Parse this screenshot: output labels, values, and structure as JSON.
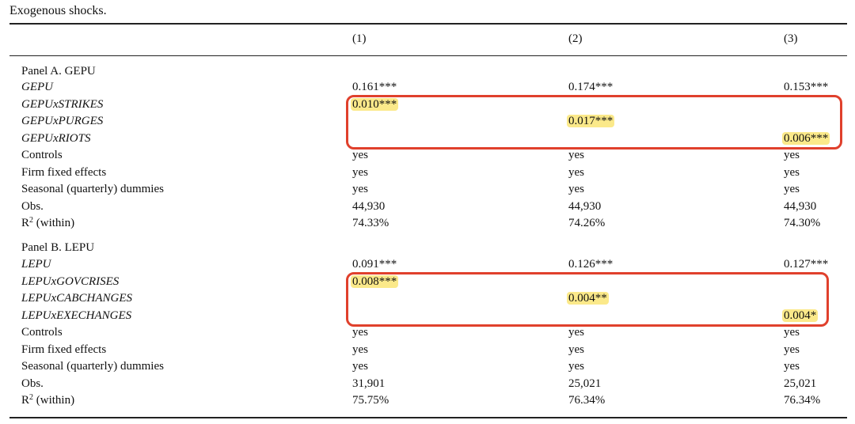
{
  "title": "Exogenous shocks.",
  "columns": [
    "(1)",
    "(2)",
    "(3)"
  ],
  "panel_a": {
    "title": "Panel A. GEPU",
    "rows": [
      {
        "label": "GEPU",
        "italic": true,
        "values": [
          "0.161***",
          "0.174***",
          "0.153***"
        ],
        "highlight": [
          false,
          false,
          false
        ]
      },
      {
        "label": "GEPUxSTRIKES",
        "italic": true,
        "values": [
          "0.010***",
          "",
          ""
        ],
        "highlight": [
          true,
          false,
          false
        ]
      },
      {
        "label": "GEPUxPURGES",
        "italic": true,
        "values": [
          "",
          "0.017***",
          ""
        ],
        "highlight": [
          false,
          true,
          false
        ]
      },
      {
        "label": "GEPUxRIOTS",
        "italic": true,
        "values": [
          "",
          "",
          "0.006***"
        ],
        "highlight": [
          false,
          false,
          true
        ]
      },
      {
        "label": "Controls",
        "italic": false,
        "values": [
          "yes",
          "yes",
          "yes"
        ],
        "highlight": [
          false,
          false,
          false
        ]
      },
      {
        "label": "Firm fixed effects",
        "italic": false,
        "values": [
          "yes",
          "yes",
          "yes"
        ],
        "highlight": [
          false,
          false,
          false
        ]
      },
      {
        "label": "Seasonal (quarterly) dummies",
        "italic": false,
        "values": [
          "yes",
          "yes",
          "yes"
        ],
        "highlight": [
          false,
          false,
          false
        ]
      },
      {
        "label": "Obs.",
        "italic": false,
        "values": [
          "44,930",
          "44,930",
          "44,930"
        ],
        "highlight": [
          false,
          false,
          false
        ]
      },
      {
        "label": "R",
        "sup": "2",
        "suffix": " (within)",
        "italic": false,
        "values": [
          "74.33%",
          "74.26%",
          "74.30%"
        ],
        "highlight": [
          false,
          false,
          false
        ]
      }
    ]
  },
  "panel_b": {
    "title": "Panel B. LEPU",
    "rows": [
      {
        "label": "LEPU",
        "italic": true,
        "values": [
          "0.091***",
          "0.126***",
          "0.127***"
        ],
        "highlight": [
          false,
          false,
          false
        ]
      },
      {
        "label": "LEPUxGOVCRISES",
        "italic": true,
        "values": [
          "0.008***",
          "",
          ""
        ],
        "highlight": [
          true,
          false,
          false
        ]
      },
      {
        "label": "LEPUxCABCHANGES",
        "italic": true,
        "values": [
          "",
          "0.004**",
          ""
        ],
        "highlight": [
          false,
          true,
          false
        ]
      },
      {
        "label": "LEPUxEXECHANGES",
        "italic": true,
        "values": [
          "",
          "",
          "0.004*"
        ],
        "highlight": [
          false,
          false,
          true
        ]
      },
      {
        "label": "Controls",
        "italic": false,
        "values": [
          "yes",
          "yes",
          "yes"
        ],
        "highlight": [
          false,
          false,
          false
        ]
      },
      {
        "label": "Firm fixed effects",
        "italic": false,
        "values": [
          "yes",
          "yes",
          "yes"
        ],
        "highlight": [
          false,
          false,
          false
        ]
      },
      {
        "label": "Seasonal (quarterly) dummies",
        "italic": false,
        "values": [
          "yes",
          "yes",
          "yes"
        ],
        "highlight": [
          false,
          false,
          false
        ]
      },
      {
        "label": "Obs.",
        "italic": false,
        "values": [
          "31,901",
          "25,021",
          "25,021"
        ],
        "highlight": [
          false,
          false,
          false
        ]
      },
      {
        "label": "R",
        "sup": "2",
        "suffix": " (within)",
        "italic": false,
        "values": [
          "75.75%",
          "76.34%",
          "76.34%"
        ],
        "highlight": [
          false,
          false,
          false
        ]
      }
    ]
  },
  "colors": {
    "highlight": "#fbe98a",
    "box_border": "#e0402c",
    "text": "#111111"
  }
}
